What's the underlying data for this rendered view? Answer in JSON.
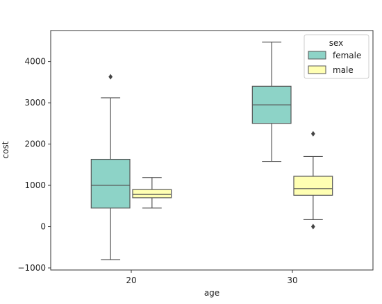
{
  "chart_data": {
    "type": "box",
    "title": "",
    "xlabel": "age",
    "ylabel": "cost",
    "categories": [
      "20",
      "30"
    ],
    "ylim": [
      -1050,
      4750
    ],
    "yticks": [
      -1000,
      0,
      1000,
      2000,
      3000,
      4000
    ],
    "ytick_labels": [
      "−1000",
      "0",
      "1000",
      "2000",
      "3000",
      "4000"
    ],
    "grid": false,
    "legend": {
      "title": "sex",
      "position": "top-right"
    },
    "series": [
      {
        "name": "female",
        "color": "#8dd3c7",
        "boxes": [
          {
            "whisker_low": -800,
            "q1": 450,
            "median": 1000,
            "q3": 1630,
            "whisker_high": 3120,
            "outliers": [
              3630
            ]
          },
          {
            "whisker_low": 1580,
            "q1": 2500,
            "median": 2950,
            "q3": 3400,
            "whisker_high": 4470,
            "outliers": []
          }
        ]
      },
      {
        "name": "male",
        "color": "#ffffb3",
        "boxes": [
          {
            "whisker_low": 450,
            "q1": 700,
            "median": 780,
            "q3": 900,
            "whisker_high": 1190,
            "outliers": []
          },
          {
            "whisker_low": 170,
            "q1": 760,
            "median": 920,
            "q3": 1220,
            "whisker_high": 1700,
            "outliers": [
              2250,
              0
            ]
          }
        ]
      }
    ]
  }
}
